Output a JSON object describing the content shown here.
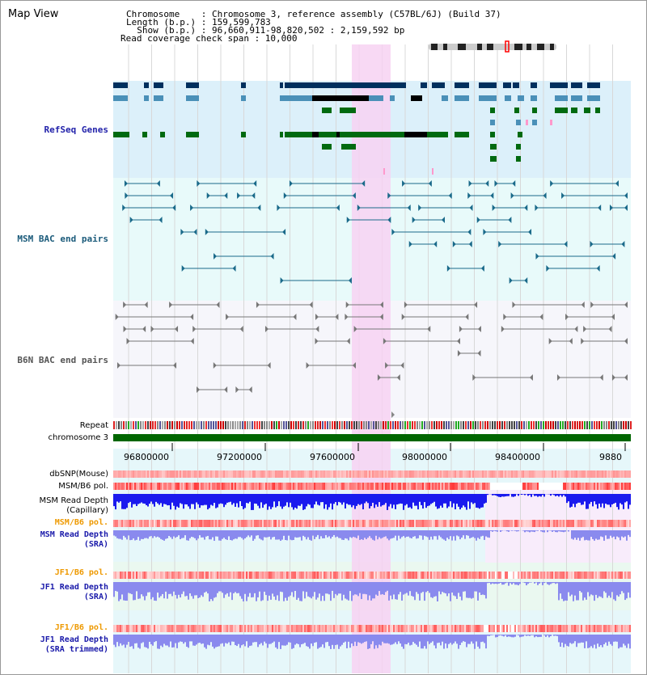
{
  "title": "Map View",
  "info": {
    "line1": "Chromosome    : Chromosome 3, reference assembly (C57BL/6J) (Build 37)",
    "line2": "Length (b.p.) : 159,599,783",
    "line3": "  Show (b.p.) : 96,660,911-98,820,502 : 2,159,592 bp",
    "line4": "Read coverage check span : 10,000"
  },
  "tracks": {
    "refseq": "RefSeq Genes",
    "msm_bac": "MSM BAC end pairs",
    "b6n_bac": "B6N BAC end pairs",
    "repeat": "Repeat",
    "chromosome": "chromosome 3",
    "dbsnp": "dbSNP(Mouse)",
    "msm_pol_1": "MSM/B6 pol.",
    "msm_depth_cap_1": "MSM Read Depth",
    "msm_depth_cap_2": "(Capillary)",
    "msm_pol_2": "MSM/B6 pol.",
    "msm_depth_sra_1": "MSM Read Depth",
    "msm_depth_sra_2": "(SRA)",
    "jf1_pol_1": "JF1/B6 pol.",
    "jf1_depth_sra_1": "JF1 Read Depth",
    "jf1_depth_sra_2": "(SRA)",
    "jf1_pol_2": "JF1/B6 pol.",
    "jf1_depth_trim_1": "JF1 Read Depth",
    "jf1_depth_trim_2": "(SRA trimmed)"
  },
  "axis": {
    "ticks": [
      "96800000",
      "97200000",
      "97600000",
      "98000000",
      "98400000",
      "9880"
    ]
  },
  "colors": {
    "refseq_text": "#2222aa",
    "msm_bac_text": "#1a5a7a",
    "b6n_bac_text": "#555555",
    "pol_text": "#ee9900",
    "depth_text": "#1a1aaa",
    "refseq_bg": "#dcf0fa",
    "msm_bg": "#e8fafa",
    "b6n_bg": "#f6f6fb",
    "highlight": "#f7d2f2",
    "chromosome_bar": "#006600",
    "depth_blue": "#1a1aee",
    "depth_light": "#8a8aee",
    "gene_dark": "#00305e",
    "gene_mid": "#4a90b8",
    "gene_green": "#006a10"
  }
}
